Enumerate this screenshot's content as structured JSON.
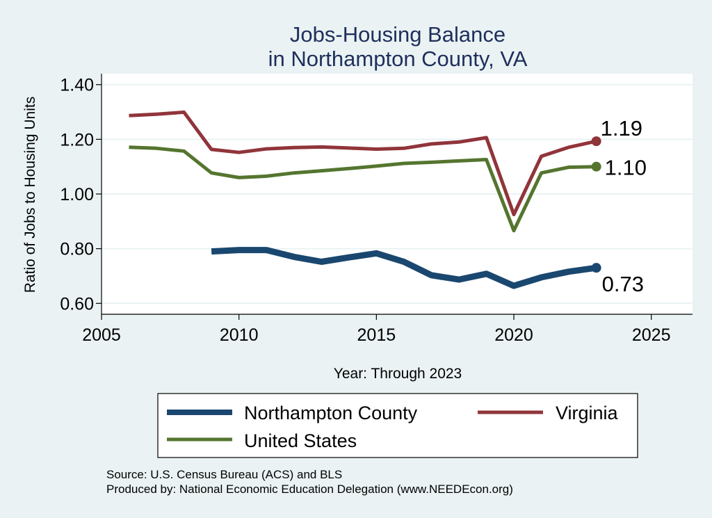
{
  "chart_data": {
    "type": "line",
    "title": [
      "Jobs-Housing Balance",
      "in Northampton County, VA"
    ],
    "xlabel": "Year: Through 2023",
    "ylabel": "Ratio of Jobs to Housing Units",
    "xlim": [
      2005,
      2026.5
    ],
    "ylim": [
      0.56,
      1.44
    ],
    "xticks": [
      2005,
      2010,
      2015,
      2020,
      2025
    ],
    "yticks": [
      0.6,
      0.8,
      1.0,
      1.2,
      1.4
    ],
    "ytick_labels": [
      "0.60",
      "0.80",
      "1.00",
      "1.20",
      "1.40"
    ],
    "grid": true,
    "legend_position": "bottom",
    "series": [
      {
        "name": "Northampton County",
        "color": "#1a476f",
        "x": [
          2009,
          2010,
          2011,
          2012,
          2013,
          2014,
          2015,
          2016,
          2017,
          2018,
          2019,
          2020,
          2021,
          2022,
          2023
        ],
        "y": [
          0.79,
          0.795,
          0.795,
          0.77,
          0.752,
          0.768,
          0.783,
          0.752,
          0.703,
          0.687,
          0.708,
          0.664,
          0.695,
          0.716,
          0.73
        ],
        "end_label": "0.73"
      },
      {
        "name": "Virginia",
        "color": "#90353b",
        "x": [
          2006,
          2007,
          2008,
          2009,
          2010,
          2011,
          2012,
          2013,
          2014,
          2015,
          2016,
          2017,
          2018,
          2019,
          2020,
          2021,
          2022,
          2023
        ],
        "y": [
          1.287,
          1.292,
          1.299,
          1.163,
          1.152,
          1.165,
          1.17,
          1.172,
          1.168,
          1.164,
          1.167,
          1.183,
          1.19,
          1.206,
          0.925,
          1.138,
          1.171,
          1.193
        ],
        "end_label": "1.19"
      },
      {
        "name": "United States",
        "color": "#55752f",
        "x": [
          2006,
          2007,
          2008,
          2009,
          2010,
          2011,
          2012,
          2013,
          2014,
          2015,
          2016,
          2017,
          2018,
          2019,
          2020,
          2021,
          2022,
          2023
        ],
        "y": [
          1.171,
          1.167,
          1.157,
          1.077,
          1.06,
          1.065,
          1.077,
          1.085,
          1.093,
          1.102,
          1.112,
          1.116,
          1.121,
          1.126,
          0.866,
          1.077,
          1.098,
          1.1
        ],
        "end_label": "1.10"
      }
    ]
  },
  "notes": {
    "source": "Source: U.S. Census Bureau (ACS) and BLS",
    "produced_by": "Produced by: National Economic Education Delegation (www.NEEDEcon.org)"
  }
}
